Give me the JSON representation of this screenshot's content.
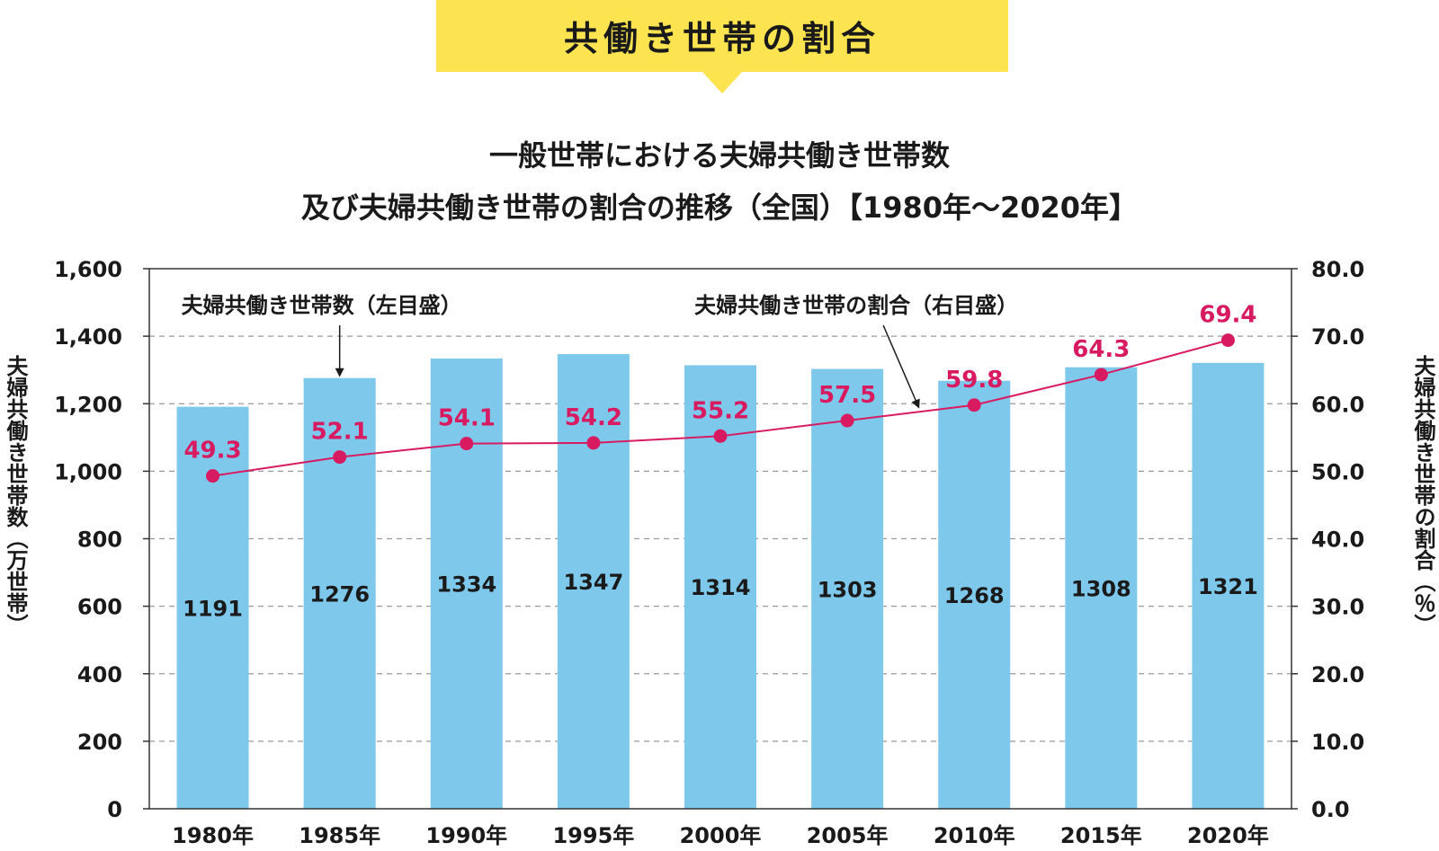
{
  "banner": {
    "label": "共働き世帯の割合"
  },
  "chart_data": {
    "type": "bar",
    "title_line1": "一般世帯における夫婦共働き世帯数",
    "title_line2": "及び夫婦共働き世帯の割合の推移（全国）【1980年～2020年】",
    "categories": [
      "1980年",
      "1985年",
      "1990年",
      "1995年",
      "2000年",
      "2005年",
      "2010年",
      "2015年",
      "2020年"
    ],
    "series": [
      {
        "name": "夫婦共働き世帯数（左目盛）",
        "type": "bar",
        "axis": "left",
        "values": [
          1191,
          1276,
          1334,
          1347,
          1314,
          1303,
          1268,
          1308,
          1321
        ],
        "color": "#7ec8ec"
      },
      {
        "name": "夫婦共働き世帯の割合（右目盛）",
        "type": "line",
        "axis": "right",
        "values": [
          49.3,
          52.1,
          54.1,
          54.2,
          55.2,
          57.5,
          59.8,
          64.3,
          69.4
        ],
        "color": "#d81b60"
      }
    ],
    "y_left": {
      "label": "夫婦共働き世帯数（万世帯）",
      "ylim": [
        0,
        1600
      ],
      "ticks": [
        "0",
        "200",
        "400",
        "600",
        "800",
        "1,000",
        "1,200",
        "1,400",
        "1,600"
      ]
    },
    "y_right": {
      "label": "夫婦共働き世帯の割合（％）",
      "ylim": [
        0,
        80
      ],
      "ticks": [
        "0.0",
        "10.0",
        "20.0",
        "30.0",
        "40.0",
        "50.0",
        "60.0",
        "70.0",
        "80.0"
      ]
    },
    "grid": "dashed horizontal",
    "text_color": "#1a1a1a"
  }
}
